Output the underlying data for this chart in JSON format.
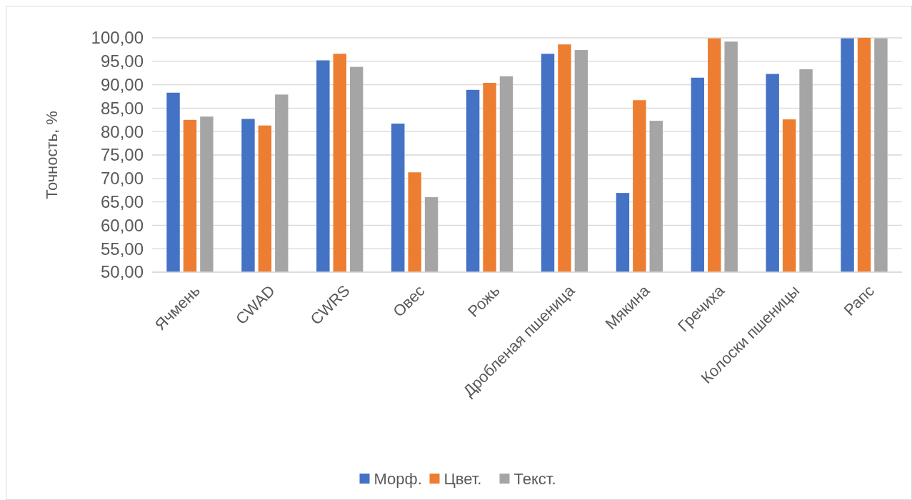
{
  "chart_data": {
    "type": "bar",
    "ylabel": "Точность, %",
    "categories": [
      "Ячмень",
      "CWAD",
      "CWRS",
      "Овес",
      "Рожь",
      "Дробленая пшеница",
      "Мякина",
      "Гречиха",
      "Колоски пшеницы",
      "Рапс"
    ],
    "series": [
      {
        "name": "Морф.",
        "color": "#4472c4",
        "values": [
          88.3,
          82.7,
          95.2,
          81.7,
          88.9,
          96.6,
          66.9,
          91.5,
          92.3,
          99.9
        ]
      },
      {
        "name": "Цвет.",
        "color": "#ed7d31",
        "values": [
          82.5,
          81.3,
          96.6,
          71.3,
          90.4,
          98.6,
          86.7,
          99.9,
          82.6,
          100
        ]
      },
      {
        "name": "Текст.",
        "color": "#a5a5a5",
        "values": [
          83.2,
          87.9,
          93.8,
          66.0,
          91.8,
          97.4,
          82.3,
          99.2,
          93.3,
          99.9
        ]
      }
    ],
    "ylim": [
      50,
      100
    ],
    "yticks": [
      {
        "value": 50,
        "label": "50,00"
      },
      {
        "value": 55,
        "label": "55,00"
      },
      {
        "value": 60,
        "label": "60,00"
      },
      {
        "value": 65,
        "label": "65,00"
      },
      {
        "value": 70,
        "label": "70,00"
      },
      {
        "value": 75,
        "label": "75,00"
      },
      {
        "value": 80,
        "label": "80,00"
      },
      {
        "value": 85,
        "label": "85,00"
      },
      {
        "value": 90,
        "label": "90,00"
      },
      {
        "value": 95,
        "label": "95,00"
      },
      {
        "value": 100,
        "label": "100,00"
      }
    ],
    "grid": "y",
    "legend": "bottom"
  }
}
